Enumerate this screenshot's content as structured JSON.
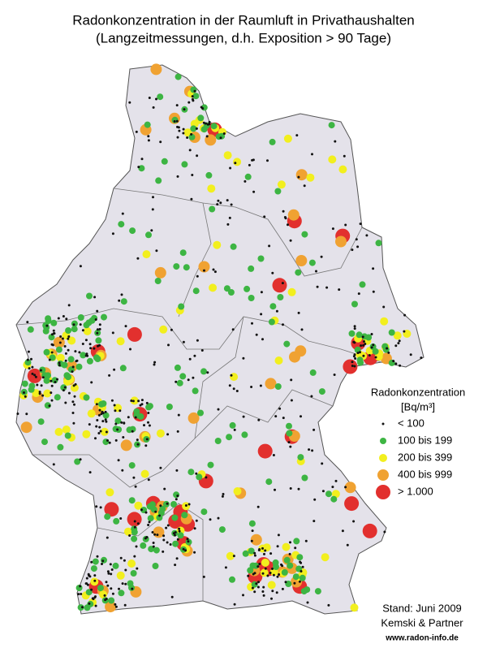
{
  "header": {
    "title": "Radonkonzentration in der Raumluft in Privathaushalten",
    "subtitle": "(Langzeitmessungen, d.h. Exposition > 90 Tage)"
  },
  "legend": {
    "title": "Radonkonzentration",
    "unit": "[Bq/m³]",
    "items": [
      {
        "label": "< 100",
        "color": "#111111"
      },
      {
        "label": "100 bis 199",
        "color": "#3db543"
      },
      {
        "label": "200 bis 399",
        "color": "#f2ef1e"
      },
      {
        "label": "400 bis 999",
        "color": "#f0a232"
      },
      {
        "label": "> 1.000",
        "color": "#e2302e"
      }
    ]
  },
  "footer": {
    "date": "Stand: Juni 2009",
    "author": "Kemski & Partner",
    "url": "www.radon-info.de"
  }
}
